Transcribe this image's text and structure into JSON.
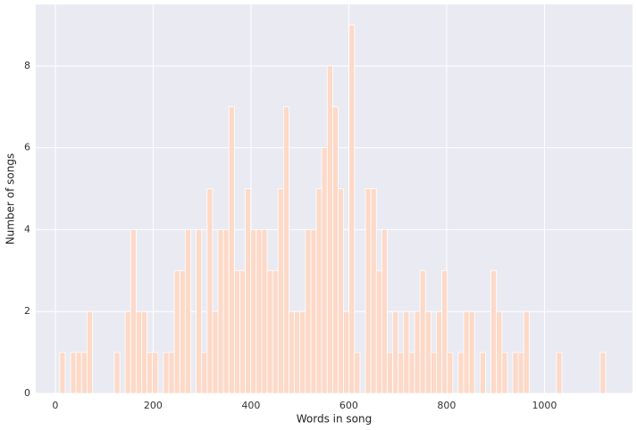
{
  "chart_data": {
    "type": "histogram",
    "x_label": "Words in song",
    "y_label": "Number of songs",
    "color": "#fdd9c8",
    "grid": true,
    "bins": [
      9,
      20.16,
      31.32,
      42.48,
      53.64,
      64.8,
      75.96,
      87.12,
      98.28,
      109.44,
      120.6,
      131.76,
      142.92,
      154.08,
      165.24,
      176.4,
      187.56,
      198.72,
      209.88,
      221.04,
      232.2,
      243.36,
      254.52,
      265.68,
      276.84,
      288,
      299.16,
      310.32,
      321.48,
      332.64,
      343.8,
      354.96,
      366.12,
      377.28,
      388.44,
      399.6,
      410.76,
      421.92,
      433.08,
      444.24,
      455.4,
      466.56,
      477.72,
      488.88,
      500.04,
      511.2,
      522.36,
      533.52,
      544.68,
      555.84,
      567,
      578.16,
      589.32,
      600.48,
      611.64,
      622.8,
      633.96,
      645.12,
      656.28,
      667.44,
      678.6,
      689.76,
      700.92,
      712.08,
      723.24,
      734.4,
      745.56,
      756.72,
      767.88,
      779.04,
      790.2,
      801.36,
      812.52,
      823.68,
      834.84,
      846,
      857.16,
      868.32,
      879.48,
      890.64,
      901.8,
      912.96,
      924.12,
      935.28,
      946.44,
      957.6,
      968.76,
      979.92,
      991.08,
      1002.24,
      1013.4,
      1024.56,
      1035.72,
      1046.88,
      1058.04,
      1069.2,
      1080.36,
      1091.52,
      1102.68,
      1113.84,
      1125
    ],
    "counts": [
      1,
      0,
      1,
      1,
      1,
      2,
      0,
      0,
      0,
      0,
      1,
      0,
      2,
      4,
      2,
      2,
      1,
      1,
      0,
      1,
      1,
      3,
      3,
      4,
      0,
      4,
      1,
      5,
      2,
      4,
      4,
      7,
      3,
      3,
      5,
      4,
      4,
      4,
      3,
      3,
      5,
      7,
      2,
      2,
      2,
      4,
      4,
      5,
      6,
      8,
      7,
      5,
      2,
      9,
      1,
      0,
      5,
      5,
      3,
      4,
      1,
      2,
      1,
      2,
      1,
      2,
      3,
      2,
      1,
      2,
      3,
      1,
      0,
      1,
      2,
      2,
      0,
      1,
      0,
      3,
      2,
      1,
      0,
      1,
      1,
      2,
      0,
      0,
      0,
      0,
      0,
      1,
      0,
      0,
      0,
      0,
      0,
      0,
      0,
      1
    ],
    "xlim": [
      -40,
      1180
    ],
    "xticks": [
      0,
      200,
      400,
      600,
      800,
      1000
    ],
    "ylim": [
      0,
      9.5
    ],
    "yticks": [
      0,
      2,
      4,
      6,
      8
    ]
  }
}
